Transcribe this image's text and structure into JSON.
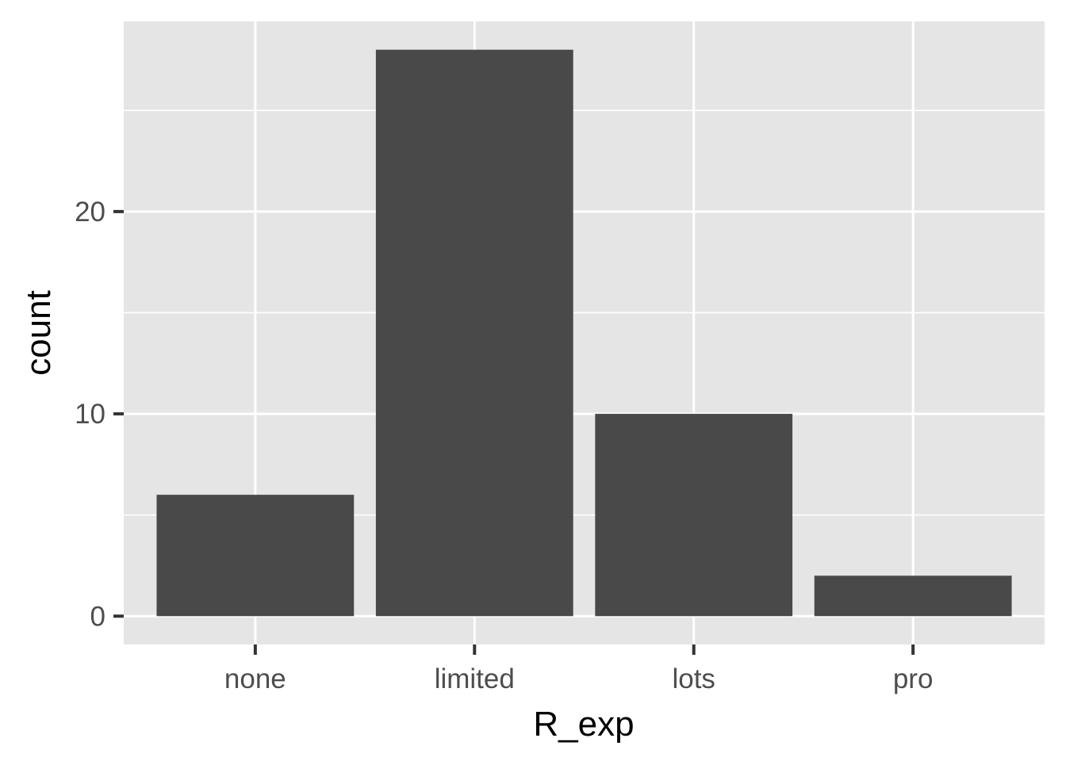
{
  "chart_data": {
    "type": "bar",
    "categories": [
      "none",
      "limited",
      "lots",
      "pro"
    ],
    "values": [
      6,
      28,
      10,
      2
    ],
    "title": "",
    "xlabel": "R_exp",
    "ylabel": "count",
    "ylim": [
      -1.4,
      29.4
    ],
    "y_ticks": [
      "0",
      "10",
      "20"
    ],
    "y_minor_ticks": [
      5,
      15,
      25
    ],
    "grid": true,
    "legend": "none",
    "colors": {
      "bar": "#494949",
      "panel_background": "#e5e5e5",
      "grid": "#ffffff",
      "tick_mark": "#333333",
      "tick_text": "#4d4d4d"
    }
  }
}
